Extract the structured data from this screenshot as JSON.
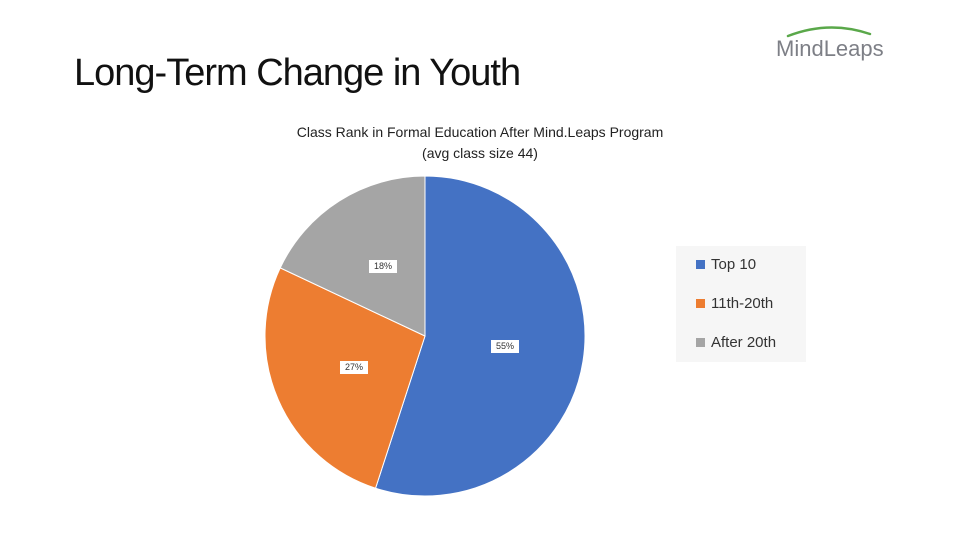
{
  "slide": {
    "title": "Long-Term Change in Youth"
  },
  "logo": {
    "text_part1": "Mind",
    "text_part2": "Leaps",
    "arc_color": "#5aa84a"
  },
  "chart_data": {
    "type": "pie",
    "title": "Class Rank in Formal Education After Mind.Leaps Program",
    "subtitle": "(avg class size 44)",
    "categories": [
      "Top 10",
      "11th-20th",
      "After 20th"
    ],
    "values": [
      55,
      27,
      18
    ],
    "labels": [
      "55%",
      "27%",
      "18%"
    ],
    "colors": [
      "#4472c4",
      "#ed7d31",
      "#a5a5a5"
    ],
    "legend": "right"
  }
}
